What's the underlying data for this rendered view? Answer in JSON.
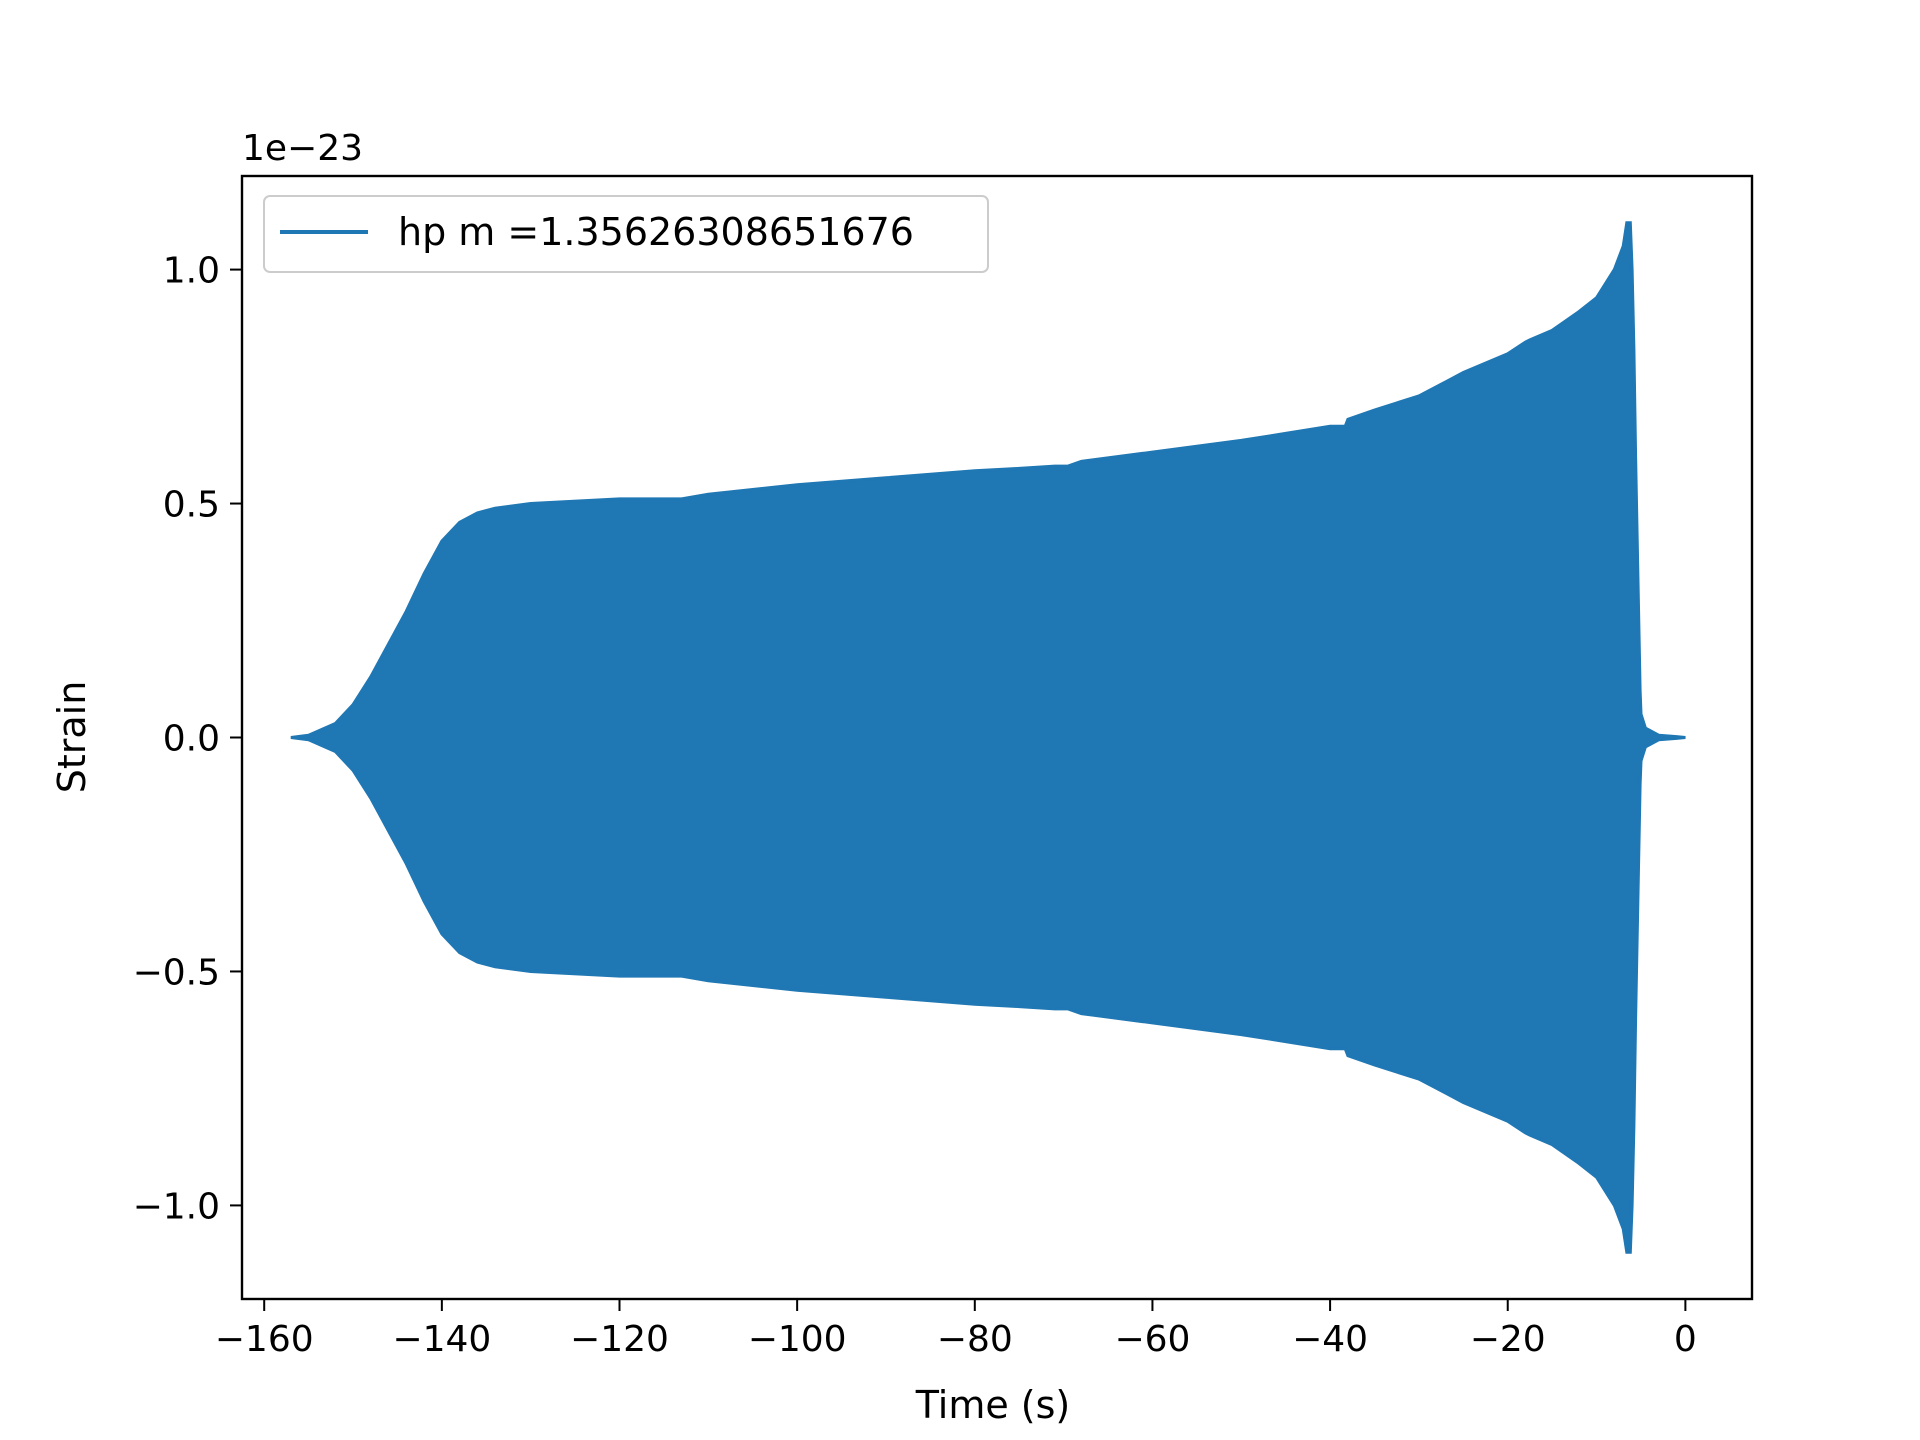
{
  "chart_data": {
    "type": "line",
    "title": "",
    "xlabel": "Time (s)",
    "ylabel": "Strain",
    "y_offset_label": "1e−23",
    "xlim": [
      -162.5,
      7.5
    ],
    "ylim": [
      -1.2,
      1.2
    ],
    "x_ticks": [
      -160,
      -140,
      -120,
      -100,
      -80,
      -60,
      -40,
      -20,
      0
    ],
    "x_tick_labels": [
      "−160",
      "−140",
      "−120",
      "−100",
      "−80",
      "−60",
      "−40",
      "−20",
      "0"
    ],
    "y_ticks": [
      -1.0,
      -0.5,
      0.0,
      0.5,
      1.0
    ],
    "y_tick_labels": [
      "−1.0",
      "−0.5",
      "0.0",
      "0.5",
      "1.0"
    ],
    "grid": false,
    "legend_position": "top-left",
    "series": [
      {
        "name": "hp m =1.35626308651676",
        "color": "#1f77b4",
        "envelope": {
          "time": [
            -157,
            -155,
            -152,
            -150,
            -148,
            -146,
            -144,
            -142,
            -140,
            -138,
            -136,
            -134,
            -130,
            -120,
            -115,
            -113,
            -110,
            -100,
            -90,
            -80,
            -75,
            -71,
            -70,
            -69.5,
            -68,
            -60,
            -50,
            -45,
            -40,
            -38.6,
            -38.3,
            -38,
            -35,
            -30,
            -27,
            -25,
            -20,
            -18,
            -17.5,
            -15,
            -12,
            -10,
            -8,
            -7,
            -6.6,
            -6.4,
            -6.2,
            -6.0,
            -5.8,
            -5.6,
            -5.3,
            -5.1,
            -5.0,
            -4.5,
            -3,
            -1,
            0
          ],
          "amplitude": [
            0.0,
            0.005,
            0.03,
            0.07,
            0.13,
            0.2,
            0.27,
            0.35,
            0.42,
            0.46,
            0.48,
            0.49,
            0.5,
            0.51,
            0.51,
            0.51,
            0.52,
            0.54,
            0.555,
            0.57,
            0.575,
            0.58,
            0.58,
            0.58,
            0.59,
            0.61,
            0.635,
            0.65,
            0.665,
            0.665,
            0.665,
            0.68,
            0.7,
            0.73,
            0.76,
            0.78,
            0.82,
            0.845,
            0.85,
            0.87,
            0.91,
            0.94,
            1.0,
            1.05,
            1.1,
            1.1,
            1.1,
            1.0,
            0.83,
            0.6,
            0.3,
            0.1,
            0.05,
            0.02,
            0.005,
            0.002,
            0.0
          ]
        }
      }
    ]
  }
}
